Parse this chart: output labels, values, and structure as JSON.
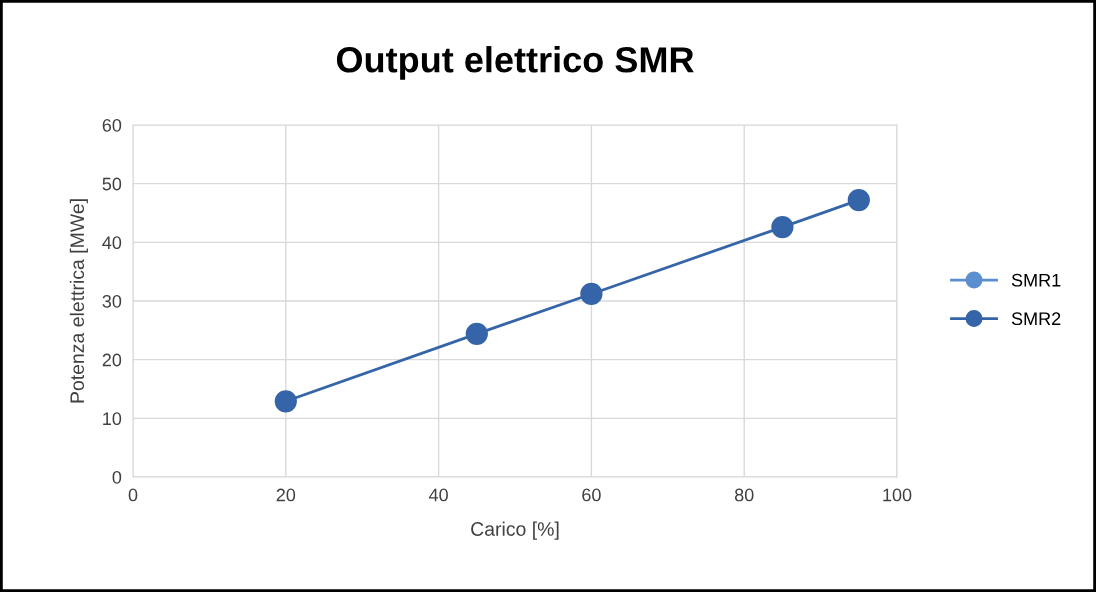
{
  "chart_data": {
    "type": "line",
    "title": "Output elettrico SMR",
    "xlabel": "Carico [%]",
    "ylabel": "Potenza elettrica [MWe]",
    "x": [
      20,
      45,
      60,
      85,
      95
    ],
    "series": [
      {
        "name": "SMR1",
        "color": "#5b8fcf",
        "values": [
          null,
          null,
          null,
          null,
          null
        ]
      },
      {
        "name": "SMR2",
        "color": "#3565a8",
        "values": [
          12.9,
          24.4,
          31.2,
          42.6,
          47.2
        ]
      }
    ],
    "xlim": [
      0,
      100
    ],
    "xticks": [
      0,
      20,
      40,
      60,
      80,
      100
    ],
    "ylim": [
      0,
      60
    ],
    "yticks": [
      0,
      10,
      20,
      30,
      40,
      50,
      60
    ],
    "grid": true,
    "legend": "right",
    "marker": "circle",
    "line_style": "solid"
  }
}
